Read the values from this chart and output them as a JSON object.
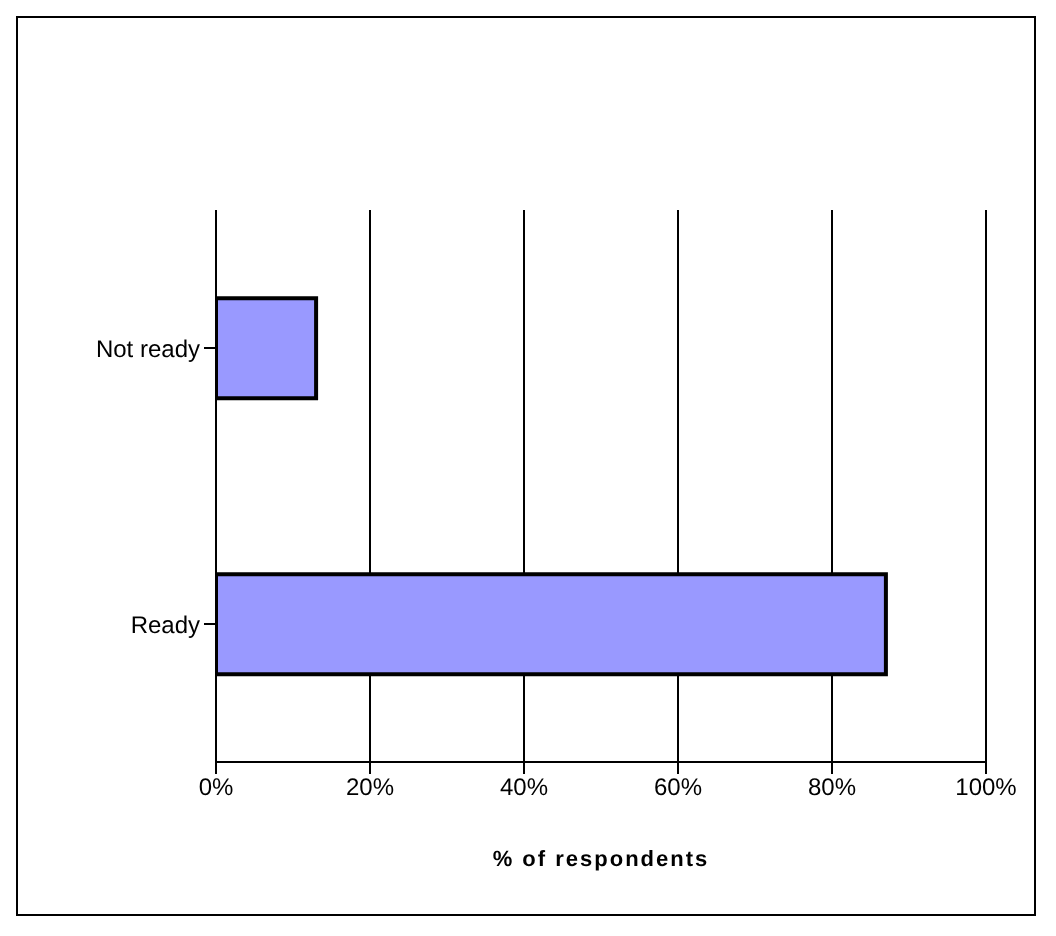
{
  "chart_data": {
    "type": "bar",
    "orientation": "horizontal",
    "categories": [
      "Not ready",
      "Ready"
    ],
    "values": [
      13,
      87
    ],
    "color": "#9999ff",
    "xlim": [
      0,
      100
    ],
    "xticks": [
      {
        "value": 0,
        "label": "0%"
      },
      {
        "value": 20,
        "label": "20%"
      },
      {
        "value": 40,
        "label": "40%"
      },
      {
        "value": 60,
        "label": "60%"
      },
      {
        "value": 80,
        "label": "80%"
      },
      {
        "value": 100,
        "label": "100%"
      }
    ],
    "xlabel": "% of respondents",
    "grid": "x",
    "legend": false
  }
}
